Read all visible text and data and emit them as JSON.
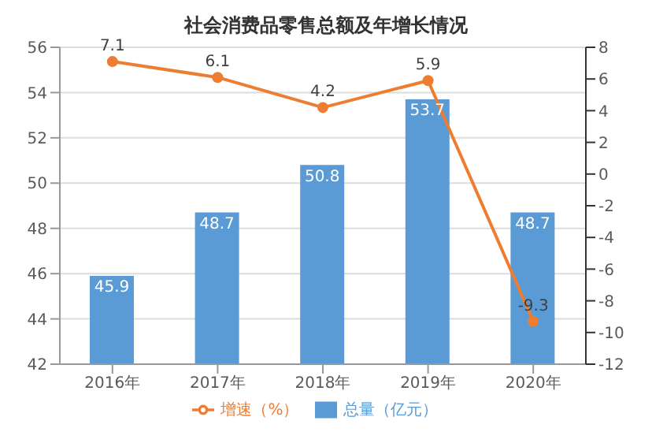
{
  "chart_data": {
    "type": "bar",
    "title": "社会消费品零售总额及年增长情况",
    "categories": [
      "2016年",
      "2017年",
      "2018年",
      "2019年",
      "2020年"
    ],
    "series": [
      {
        "name": "总量（亿元）",
        "color": "#5b9bd5",
        "values": [
          45.9,
          48.7,
          50.8,
          53.7,
          48.7
        ]
      },
      {
        "name": "增速（%）",
        "type": "line",
        "axis": "y2",
        "color": "#ed7d31",
        "values": [
          7.1,
          6.1,
          4.2,
          5.9,
          -9.3
        ]
      }
    ],
    "ylim": [
      42,
      56
    ],
    "yticks": [
      42,
      44,
      46,
      48,
      50,
      52,
      54,
      56
    ],
    "y2lim": [
      -12,
      8
    ],
    "y2ticks": [
      -12,
      -10,
      -8,
      -6,
      -4,
      -2,
      0,
      2,
      4,
      6,
      8
    ],
    "grid": "y",
    "legend": "bottom",
    "marker": "circle",
    "data_labels": true
  }
}
